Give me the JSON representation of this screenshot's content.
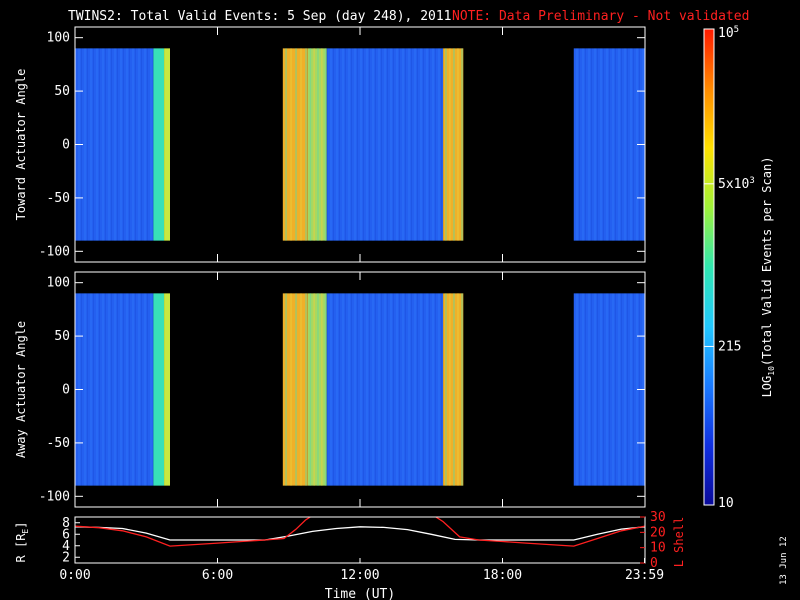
{
  "header": {
    "title": "TWINS2: Total Valid Events:  5 Sep (day 248), 2011",
    "note": "NOTE: Data Preliminary - Not validated",
    "note_color": "#ff2020"
  },
  "stamp": "13 Jun 12",
  "chart_data": [
    {
      "type": "heatmap",
      "panel": "toward",
      "ylabel": "Toward Actuator Angle",
      "ylim": [
        -110,
        110
      ],
      "yticks": [
        "100",
        "50",
        "0",
        "-50",
        "-100"
      ],
      "ytick_values": [
        100,
        50,
        0,
        -50,
        -100
      ],
      "x_unit": "hours UT",
      "xlim": [
        0,
        24
      ],
      "data_angle_range": [
        -90,
        90
      ],
      "segments": [
        {
          "start": 0.0,
          "end": 3.3,
          "level": "blue"
        },
        {
          "start": 3.3,
          "end": 3.75,
          "level": "cyan-green"
        },
        {
          "start": 3.75,
          "end": 4.0,
          "level": "green-yellow"
        },
        {
          "start": 8.75,
          "end": 9.8,
          "level": "orange"
        },
        {
          "start": 9.8,
          "end": 10.6,
          "level": "yellow-green"
        },
        {
          "start": 10.6,
          "end": 15.5,
          "level": "blue"
        },
        {
          "start": 15.5,
          "end": 16.35,
          "level": "orange"
        },
        {
          "start": 21.0,
          "end": 24.0,
          "level": "blue"
        }
      ],
      "gaps": [
        [
          4.0,
          8.75
        ],
        [
          16.35,
          21.0
        ]
      ]
    },
    {
      "type": "heatmap",
      "panel": "away",
      "ylabel": "Away Actuator Angle",
      "ylim": [
        -110,
        110
      ],
      "yticks": [
        "100",
        "50",
        "0",
        "-50",
        "-100"
      ],
      "ytick_values": [
        100,
        50,
        0,
        -50,
        -100
      ],
      "x_unit": "hours UT",
      "xlim": [
        0,
        24
      ],
      "data_angle_range": [
        -90,
        90
      ],
      "segments": [
        {
          "start": 0.0,
          "end": 3.3,
          "level": "blue"
        },
        {
          "start": 3.3,
          "end": 3.75,
          "level": "cyan-green"
        },
        {
          "start": 3.75,
          "end": 4.0,
          "level": "green-yellow"
        },
        {
          "start": 8.75,
          "end": 9.8,
          "level": "orange"
        },
        {
          "start": 9.8,
          "end": 10.6,
          "level": "yellow-green"
        },
        {
          "start": 10.6,
          "end": 15.5,
          "level": "blue"
        },
        {
          "start": 15.5,
          "end": 16.35,
          "level": "orange"
        },
        {
          "start": 21.0,
          "end": 24.0,
          "level": "blue"
        }
      ],
      "gaps": [
        [
          4.0,
          8.75
        ],
        [
          16.35,
          21.0
        ]
      ]
    },
    {
      "type": "line",
      "panel": "orbit",
      "ylabel": "R [R",
      "ylabel_sub": "E",
      "ylabel_close": "]",
      "ylim": [
        1,
        9
      ],
      "yticks": [
        "8",
        "6",
        "4",
        "2"
      ],
      "ytick_values": [
        8,
        6,
        4,
        2
      ],
      "y2label": "L Shell",
      "y2lim": [
        0,
        30
      ],
      "y2ticks": [
        "30",
        "20",
        "10",
        "0"
      ],
      "y2tick_values": [
        30,
        20,
        10,
        0
      ],
      "y2_color": "#ff2020",
      "xlabel": "Time (UT)",
      "xticks": [
        "0:00",
        "6:00",
        "12:00",
        "18:00",
        "23:59"
      ],
      "xtick_values": [
        0,
        6,
        12,
        18,
        23.98
      ],
      "xlim": [
        0,
        24
      ],
      "series": [
        {
          "color": "#ffffff",
          "axis": "left",
          "x": [
            0,
            1,
            2,
            3,
            4,
            5,
            6,
            7,
            8,
            9,
            10,
            11,
            12,
            13,
            14,
            15,
            16,
            17,
            18,
            19,
            20,
            21,
            22,
            23,
            24
          ],
          "y": [
            7.3,
            7.2,
            7.0,
            6.2,
            5.0,
            5.0,
            5.0,
            5.0,
            5.0,
            5.7,
            6.5,
            7.0,
            7.3,
            7.2,
            6.8,
            6.0,
            5.1,
            5.0,
            5.0,
            5.0,
            5.0,
            5.0,
            6.0,
            6.9,
            7.3
          ]
        },
        {
          "color": "#ff2020",
          "axis": "right",
          "x": [
            0,
            1,
            2,
            3,
            4,
            5,
            6,
            7,
            8,
            8.8,
            9.3,
            9.7,
            10.0,
            15.1,
            15.5,
            16.2,
            17,
            18,
            19,
            20,
            21,
            22,
            23,
            24
          ],
          "y": [
            24,
            23,
            21,
            17,
            11,
            12,
            13,
            14,
            15,
            16,
            22,
            28,
            31,
            31,
            27,
            17,
            15,
            14,
            13,
            12,
            11,
            16,
            21,
            24
          ]
        }
      ]
    }
  ],
  "colorbar": {
    "label": "LOG",
    "label_sub": "10",
    "label_rest": "(Total Valid Events per Scan)",
    "ticks": [
      {
        "base": "10",
        "sup": "",
        "value": 10
      },
      {
        "base": "215",
        "sup": "",
        "value": 215
      },
      {
        "base": "5x10",
        "sup": "3",
        "value": 5000
      },
      {
        "base": "10",
        "sup": "5",
        "value": 100000
      }
    ],
    "range": [
      10,
      100000
    ],
    "stops": [
      "#0a0a9a",
      "#1030e0",
      "#1a7aff",
      "#22c8ff",
      "#30e8b0",
      "#9ff23a",
      "#ffe000",
      "#ff8a00",
      "#ff1a00"
    ]
  },
  "levels": {
    "blue": "#2460f0",
    "cyan-green": "#38e0b8",
    "green-yellow": "#c8e840",
    "orange": "#f0b028",
    "yellow-green": "#a8d860"
  }
}
